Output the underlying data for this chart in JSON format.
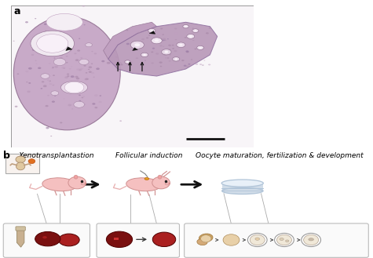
{
  "panel_a_label": "a",
  "panel_b_label": "b",
  "background_color": "#ffffff",
  "step1_title": "Xenotransplantastion",
  "step2_title": "Follicular induction",
  "step3_title": "Oocyte maturation, fertilization & development",
  "mouse_body_color": "#f5c0c0",
  "mouse_ear_color": "#f0a0a0",
  "mouse_nose_color": "#e08080",
  "organ_dark": "#7a1010",
  "organ_mid": "#aa2020",
  "organ_light": "#cc4040",
  "oocyte_tan": "#d4a870",
  "oocyte_light": "#e8d0a8",
  "oocyte_pale": "#f0e8d8",
  "oocyte_white": "#f8f5f0",
  "petri_top": "#e8f0f8",
  "petri_side": "#d0dce8",
  "petri_rim": "#b0c4d8",
  "inset_bg": "#fafafa",
  "inset_border": "#bbbbbb",
  "tube_color": "#c8b090",
  "inject_color": "#e8a020",
  "tissue_bg": "#f5f0f5",
  "tissue_main": "#c8a8c8",
  "tissue_dark": "#a888a8",
  "tissue_follicle_bg": "#e8d8e8",
  "panel_label_fontsize": 9,
  "title_fontsize": 6.5,
  "scale_bar_color": "#111111"
}
